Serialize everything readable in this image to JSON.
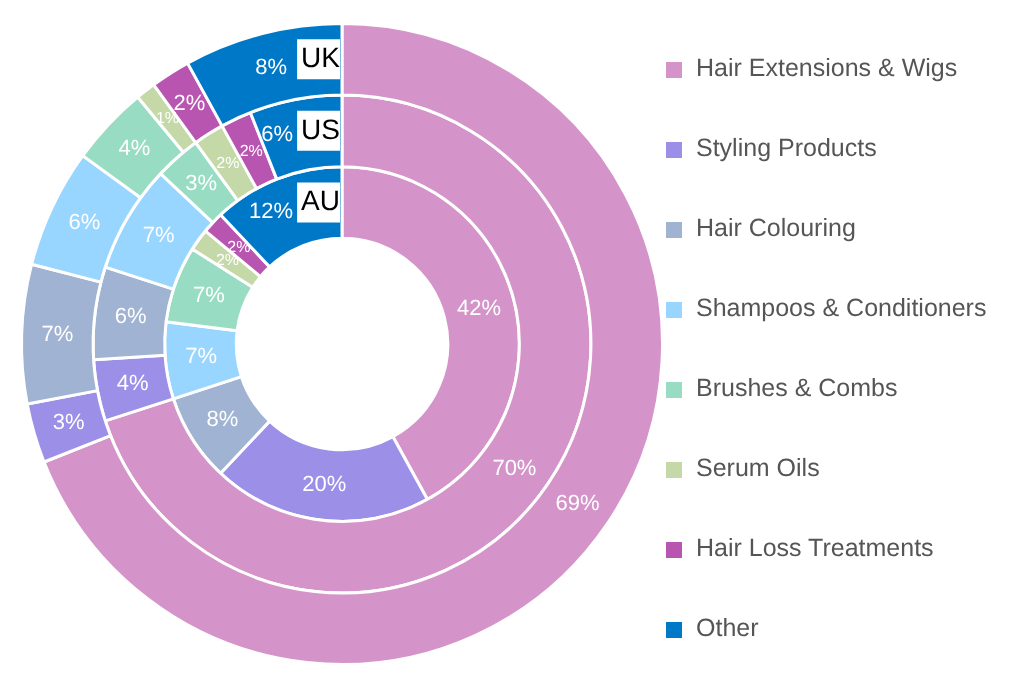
{
  "chart_data": {
    "type": "donut",
    "categories": [
      "Hair Extensions & Wigs",
      "Styling Products",
      "Hair Colouring",
      "Shampoos & Conditioners",
      "Brushes & Combs",
      "Serum Oils",
      "Hair Loss Treatments",
      "Other"
    ],
    "colors": [
      "#d494c9",
      "#9b8fe8",
      "#a0b3d2",
      "#99d6ff",
      "#99dcc4",
      "#c5d8a8",
      "#b855b0",
      "#0078c8"
    ],
    "series": [
      {
        "name": "AU",
        "values": [
          42,
          20,
          8,
          7,
          7,
          2,
          2,
          12
        ],
        "value_labels": [
          "42%",
          "20%",
          "8%",
          "7%",
          "7%",
          "2%",
          "2%",
          "12%"
        ]
      },
      {
        "name": "US",
        "values": [
          70,
          4,
          6,
          7,
          3,
          2,
          2,
          6
        ],
        "value_labels": [
          "70%",
          "4%",
          "6%",
          "7%",
          "3%",
          "2%",
          "2%",
          "6%"
        ]
      },
      {
        "name": "UK",
        "values": [
          69,
          3,
          7,
          6,
          4,
          1,
          2,
          8
        ],
        "value_labels": [
          "69%",
          "3%",
          "7%",
          "6%",
          "4%",
          "1%",
          "2%",
          "8%"
        ]
      }
    ],
    "legend": "right"
  }
}
